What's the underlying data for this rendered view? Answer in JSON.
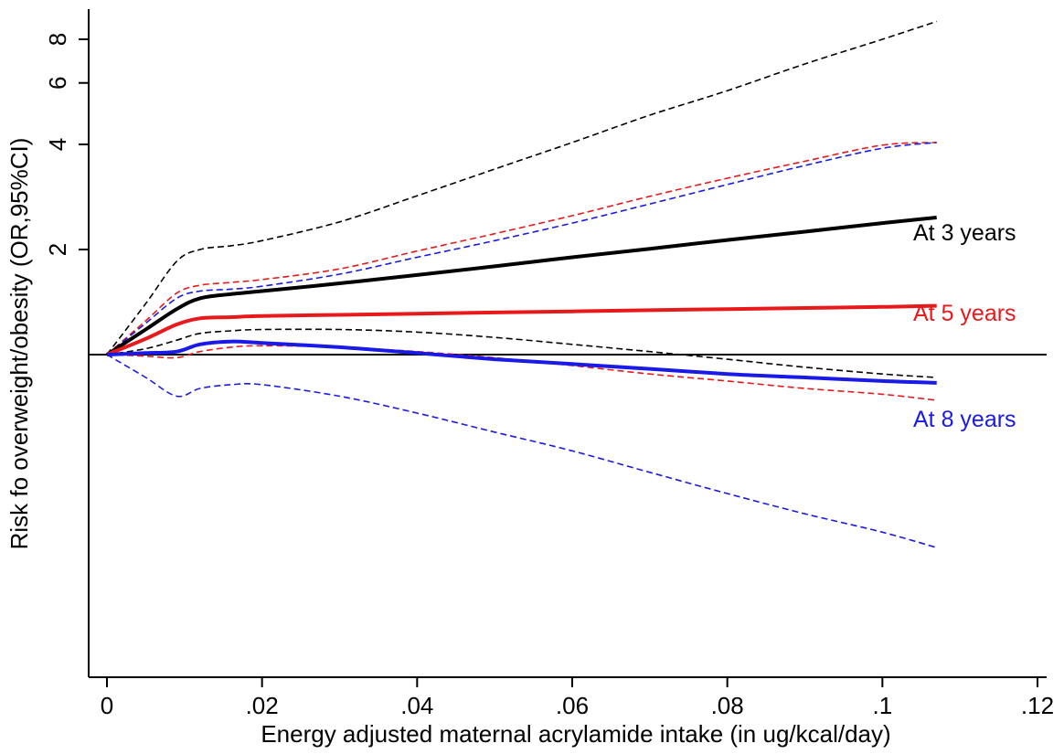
{
  "chart_data": {
    "type": "line",
    "title": "",
    "xlabel": "Energy adjusted maternal acrylamide intake (in ug/kcal/day)",
    "ylabel": "Risk fo overweight/obesity (OR,95%CI)",
    "xlim": [
      0,
      0.12
    ],
    "xticks": [
      0,
      0.02,
      0.04,
      0.06,
      0.08,
      0.1,
      0.12
    ],
    "xtick_labels": [
      "0",
      ".02",
      ".04",
      ".06",
      ".08",
      ".1",
      ".12"
    ],
    "y_scale": "log",
    "ylim": [
      0.22,
      10
    ],
    "yticks": [
      2,
      4,
      6,
      8
    ],
    "ytick_labels": [
      "2",
      "4",
      "6",
      "8"
    ],
    "reference_line": 1,
    "grid": false,
    "legend": "inline labels at right end of lines",
    "x": [
      0,
      0.005,
      0.009,
      0.012,
      0.016,
      0.02,
      0.03,
      0.04,
      0.05,
      0.06,
      0.07,
      0.08,
      0.09,
      0.1,
      0.107
    ],
    "series": [
      {
        "name": "At 3 years",
        "color": "#000000",
        "estimate": [
          1.0,
          1.18,
          1.35,
          1.45,
          1.49,
          1.52,
          1.6,
          1.69,
          1.79,
          1.9,
          2.01,
          2.13,
          2.25,
          2.38,
          2.47
        ],
        "lower": [
          1.0,
          1.04,
          1.1,
          1.15,
          1.17,
          1.18,
          1.18,
          1.16,
          1.12,
          1.07,
          1.02,
          0.97,
          0.92,
          0.88,
          0.86
        ],
        "upper": [
          1.0,
          1.4,
          1.85,
          2.0,
          2.05,
          2.12,
          2.4,
          2.85,
          3.4,
          4.05,
          4.85,
          5.7,
          6.8,
          8.0,
          9.0
        ]
      },
      {
        "name": "At 5 years",
        "color": "#e8191b",
        "estimate": [
          1.0,
          1.11,
          1.22,
          1.27,
          1.28,
          1.29,
          1.3,
          1.31,
          1.32,
          1.33,
          1.34,
          1.35,
          1.36,
          1.37,
          1.38
        ],
        "lower": [
          1.0,
          0.99,
          0.98,
          1.02,
          1.05,
          1.06,
          1.05,
          1.02,
          0.98,
          0.93,
          0.88,
          0.84,
          0.8,
          0.77,
          0.74
        ],
        "upper": [
          1.0,
          1.25,
          1.5,
          1.58,
          1.61,
          1.64,
          1.76,
          1.98,
          2.22,
          2.5,
          2.84,
          3.2,
          3.58,
          3.98,
          4.05
        ]
      },
      {
        "name": "At 8 years",
        "color": "#1a1ae6",
        "estimate": [
          1.0,
          1.01,
          1.02,
          1.07,
          1.09,
          1.08,
          1.05,
          1.01,
          0.97,
          0.94,
          0.91,
          0.88,
          0.86,
          0.84,
          0.83
        ],
        "lower": [
          1.0,
          0.86,
          0.76,
          0.8,
          0.82,
          0.82,
          0.76,
          0.68,
          0.6,
          0.53,
          0.46,
          0.4,
          0.35,
          0.31,
          0.28
        ],
        "upper": [
          1.0,
          1.23,
          1.45,
          1.52,
          1.54,
          1.57,
          1.7,
          1.9,
          2.12,
          2.38,
          2.7,
          3.07,
          3.48,
          3.9,
          4.05
        ]
      }
    ]
  }
}
